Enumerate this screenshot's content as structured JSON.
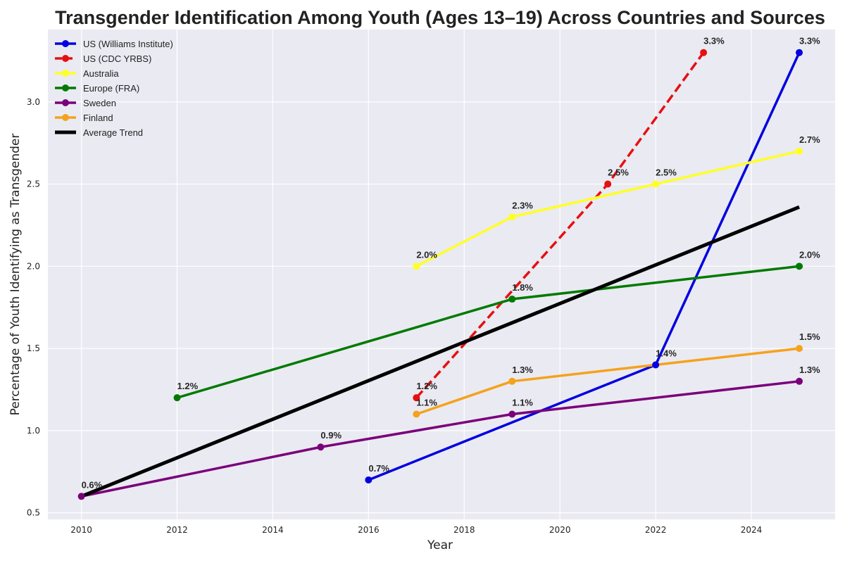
{
  "chart_data": {
    "type": "line",
    "title": "Transgender Identification Among Youth (Ages 13–19) Across Countries and Sources",
    "xlabel": "Year",
    "ylabel": "Percentage of Youth Identifying as Transgender",
    "xlim": [
      2009.3,
      2025.75
    ],
    "ylim": [
      0.46,
      3.44
    ],
    "xticks": [
      2010,
      2012,
      2014,
      2016,
      2018,
      2020,
      2022,
      2024
    ],
    "yticks": [
      0.5,
      1.0,
      1.5,
      2.0,
      2.5,
      3.0
    ],
    "grid": true,
    "legend_position": "top-left",
    "series": [
      {
        "name": "US (Williams Institute)",
        "color": "#0000e0",
        "style": "solid",
        "marker": "circle",
        "points": [
          [
            2016,
            0.7
          ],
          [
            2022,
            1.4
          ],
          [
            2025,
            3.3
          ]
        ],
        "labels": [
          "0.7%",
          "1.4%",
          "3.3%"
        ]
      },
      {
        "name": "US (CDC YRBS)",
        "color": "#e61010",
        "style": "dashed",
        "marker": "circle",
        "points": [
          [
            2017,
            1.2
          ],
          [
            2021,
            2.5
          ],
          [
            2023,
            3.3
          ]
        ],
        "labels": [
          "1.2%",
          "2.5%",
          "3.3%"
        ]
      },
      {
        "name": "Australia",
        "color": "#ffff26",
        "style": "solid",
        "marker": "circle",
        "points": [
          [
            2017,
            2.0
          ],
          [
            2019,
            2.3
          ],
          [
            2022,
            2.5
          ],
          [
            2025,
            2.7
          ]
        ],
        "labels": [
          "2.0%",
          "2.3%",
          "2.5%",
          "2.7%"
        ]
      },
      {
        "name": "Europe (FRA)",
        "color": "#007a00",
        "style": "solid",
        "marker": "circle",
        "points": [
          [
            2012,
            1.2
          ],
          [
            2019,
            1.8
          ],
          [
            2025,
            2.0
          ]
        ],
        "labels": [
          "1.2%",
          "1.8%",
          "2.0%"
        ]
      },
      {
        "name": "Sweden",
        "color": "#7a007a",
        "style": "solid",
        "marker": "circle",
        "points": [
          [
            2010,
            0.6
          ],
          [
            2015,
            0.9
          ],
          [
            2019,
            1.1
          ],
          [
            2025,
            1.3
          ]
        ],
        "labels": [
          "0.6%",
          "0.9%",
          "1.1%",
          "1.3%"
        ]
      },
      {
        "name": "Finland",
        "color": "#f5a21c",
        "style": "solid",
        "marker": "circle",
        "points": [
          [
            2017,
            1.1
          ],
          [
            2019,
            1.3
          ],
          [
            2025,
            1.5
          ]
        ],
        "labels": [
          "1.1%",
          "1.3%",
          "1.5%"
        ]
      },
      {
        "name": "Average Trend",
        "color": "#000000",
        "style": "solid",
        "marker": "none",
        "points": [
          [
            2010,
            0.6
          ],
          [
            2025,
            2.36
          ]
        ],
        "labels": []
      }
    ]
  }
}
